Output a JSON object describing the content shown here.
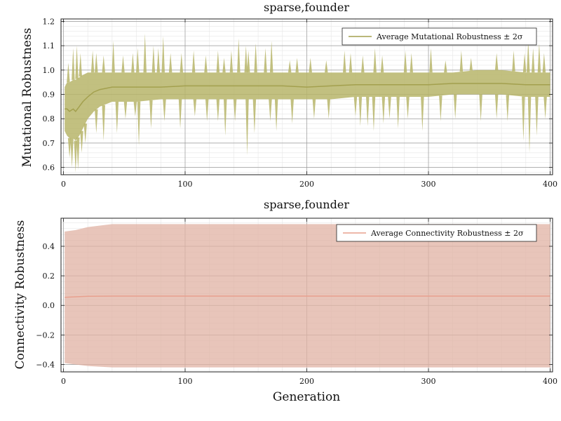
{
  "chart_data": [
    {
      "type": "area",
      "title": "sparse,founder",
      "xlabel": "",
      "ylabel": "Mutational Robustness",
      "xlim": [
        -2,
        402
      ],
      "ylim": [
        0.57,
        1.21
      ],
      "xticks": [
        0,
        100,
        200,
        300,
        400
      ],
      "xtick_labels": [
        "0",
        "100",
        "200",
        "300",
        "400"
      ],
      "yticks": [
        0.6,
        0.7,
        0.8,
        0.9,
        1.0,
        1.1,
        1.2
      ],
      "ytick_labels": [
        "0.6",
        "0.7",
        "0.8",
        "0.9",
        "1.0",
        "1.1",
        "1.2"
      ],
      "grid": true,
      "legend": {
        "position": "top-right",
        "entries": [
          "Average Mutational Robustness ± 2σ"
        ]
      },
      "colors": {
        "line": "#a3a04e",
        "band": "#b7b56a"
      },
      "series": [
        {
          "name": "Average Mutational Robustness ± 2σ",
          "x": [
            1,
            3,
            5,
            8,
            10,
            13,
            16,
            20,
            25,
            30,
            40,
            50,
            60,
            80,
            100,
            120,
            140,
            160,
            180,
            200,
            220,
            240,
            260,
            280,
            300,
            320,
            340,
            360,
            380,
            390,
            400
          ],
          "mean": [
            0.84,
            0.84,
            0.83,
            0.84,
            0.83,
            0.85,
            0.87,
            0.89,
            0.91,
            0.92,
            0.93,
            0.93,
            0.93,
            0.93,
            0.935,
            0.935,
            0.935,
            0.935,
            0.935,
            0.93,
            0.935,
            0.94,
            0.94,
            0.94,
            0.94,
            0.945,
            0.945,
            0.945,
            0.94,
            0.94,
            0.94
          ],
          "upper": [
            0.93,
            0.95,
            0.95,
            0.96,
            0.96,
            0.97,
            0.98,
            0.99,
            0.99,
            0.99,
            0.99,
            0.99,
            0.99,
            0.99,
            0.99,
            0.99,
            0.99,
            0.99,
            0.99,
            0.99,
            0.99,
            0.99,
            0.99,
            0.99,
            0.99,
            0.99,
            1.0,
            1.0,
            0.99,
            0.99,
            0.99
          ],
          "lower": [
            0.75,
            0.73,
            0.72,
            0.72,
            0.71,
            0.73,
            0.76,
            0.8,
            0.83,
            0.85,
            0.87,
            0.87,
            0.87,
            0.88,
            0.88,
            0.88,
            0.88,
            0.88,
            0.88,
            0.88,
            0.88,
            0.89,
            0.89,
            0.89,
            0.89,
            0.9,
            0.9,
            0.9,
            0.89,
            0.89,
            0.89
          ],
          "spikes_up": [
            [
              4,
              1.03
            ],
            [
              8,
              1.09
            ],
            [
              11,
              1.1
            ],
            [
              14,
              1.07
            ],
            [
              24,
              1.08
            ],
            [
              27,
              1.07
            ],
            [
              33,
              1.06
            ],
            [
              41,
              1.12
            ],
            [
              49,
              1.06
            ],
            [
              57,
              1.07
            ],
            [
              61,
              1.09
            ],
            [
              67,
              1.15
            ],
            [
              74,
              1.1
            ],
            [
              78,
              1.09
            ],
            [
              82,
              1.14
            ],
            [
              88,
              1.07
            ],
            [
              97,
              1.07
            ],
            [
              107,
              1.08
            ],
            [
              117,
              1.06
            ],
            [
              127,
              1.08
            ],
            [
              132,
              1.05
            ],
            [
              138,
              1.08
            ],
            [
              144,
              1.13
            ],
            [
              150,
              1.1
            ],
            [
              152,
              1.08
            ],
            [
              158,
              1.11
            ],
            [
              166,
              1.09
            ],
            [
              171,
              1.12
            ],
            [
              186,
              1.04
            ],
            [
              192,
              1.05
            ],
            [
              203,
              1.05
            ],
            [
              216,
              1.04
            ],
            [
              231,
              1.08
            ],
            [
              236,
              1.07
            ],
            [
              246,
              1.06
            ],
            [
              256,
              1.09
            ],
            [
              262,
              1.06
            ],
            [
              281,
              1.08
            ],
            [
              286,
              1.07
            ],
            [
              302,
              1.09
            ],
            [
              314,
              1.04
            ],
            [
              327,
              1.08
            ],
            [
              335,
              1.05
            ],
            [
              356,
              1.07
            ],
            [
              370,
              1.08
            ],
            [
              379,
              1.07
            ],
            [
              382,
              1.12
            ],
            [
              386,
              1.09
            ],
            [
              391,
              1.11
            ],
            [
              395,
              1.07
            ]
          ],
          "spikes_down": [
            [
              5,
              0.64
            ],
            [
              7,
              0.6
            ],
            [
              10,
              0.58
            ],
            [
              12,
              0.59
            ],
            [
              15,
              0.66
            ],
            [
              18,
              0.7
            ],
            [
              27,
              0.74
            ],
            [
              33,
              0.71
            ],
            [
              44,
              0.74
            ],
            [
              51,
              0.8
            ],
            [
              59,
              0.81
            ],
            [
              62,
              0.69
            ],
            [
              72,
              0.76
            ],
            [
              83,
              0.79
            ],
            [
              96,
              0.76
            ],
            [
              108,
              0.81
            ],
            [
              118,
              0.79
            ],
            [
              127,
              0.79
            ],
            [
              133,
              0.73
            ],
            [
              141,
              0.79
            ],
            [
              151,
              0.65
            ],
            [
              157,
              0.74
            ],
            [
              170,
              0.79
            ],
            [
              175,
              0.75
            ],
            [
              188,
              0.78
            ],
            [
              206,
              0.8
            ],
            [
              218,
              0.8
            ],
            [
              240,
              0.81
            ],
            [
              244,
              0.77
            ],
            [
              250,
              0.77
            ],
            [
              255,
              0.75
            ],
            [
              263,
              0.78
            ],
            [
              268,
              0.8
            ],
            [
              275,
              0.76
            ],
            [
              283,
              0.8
            ],
            [
              295,
              0.75
            ],
            [
              310,
              0.79
            ],
            [
              322,
              0.8
            ],
            [
              343,
              0.79
            ],
            [
              356,
              0.8
            ],
            [
              365,
              0.79
            ],
            [
              378,
              0.71
            ],
            [
              383,
              0.66
            ],
            [
              389,
              0.73
            ],
            [
              396,
              0.8
            ]
          ]
        }
      ]
    },
    {
      "type": "area",
      "title": "sparse,founder",
      "xlabel": "Generation",
      "ylabel": "Connectivity Robustness",
      "xlim": [
        -2,
        402
      ],
      "ylim": [
        -0.45,
        0.59
      ],
      "xticks": [
        0,
        100,
        200,
        300,
        400
      ],
      "xtick_labels": [
        "0",
        "100",
        "200",
        "300",
        "400"
      ],
      "yticks": [
        -0.4,
        -0.2,
        0.0,
        0.2,
        0.4
      ],
      "ytick_labels": [
        "−0.4",
        "−0.2",
        "0.0",
        "0.2",
        "0.4"
      ],
      "grid": true,
      "legend": {
        "position": "top-right",
        "entries": [
          "Average Connectivity Robustness ± 2σ"
        ]
      },
      "colors": {
        "line": "#e8a08e",
        "band": "#e0b1a3"
      },
      "series": [
        {
          "name": "Average Connectivity Robustness ± 2σ",
          "x": [
            1,
            10,
            20,
            40,
            60,
            80,
            100,
            150,
            200,
            250,
            300,
            350,
            400
          ],
          "mean": [
            0.055,
            0.058,
            0.062,
            0.063,
            0.063,
            0.063,
            0.063,
            0.063,
            0.063,
            0.063,
            0.063,
            0.063,
            0.063
          ],
          "upper": [
            0.5,
            0.51,
            0.53,
            0.55,
            0.55,
            0.55,
            0.55,
            0.55,
            0.55,
            0.55,
            0.55,
            0.55,
            0.55
          ],
          "lower": [
            -0.39,
            -0.4,
            -0.41,
            -0.42,
            -0.42,
            -0.42,
            -0.42,
            -0.42,
            -0.42,
            -0.42,
            -0.42,
            -0.42,
            -0.42
          ]
        }
      ]
    }
  ]
}
